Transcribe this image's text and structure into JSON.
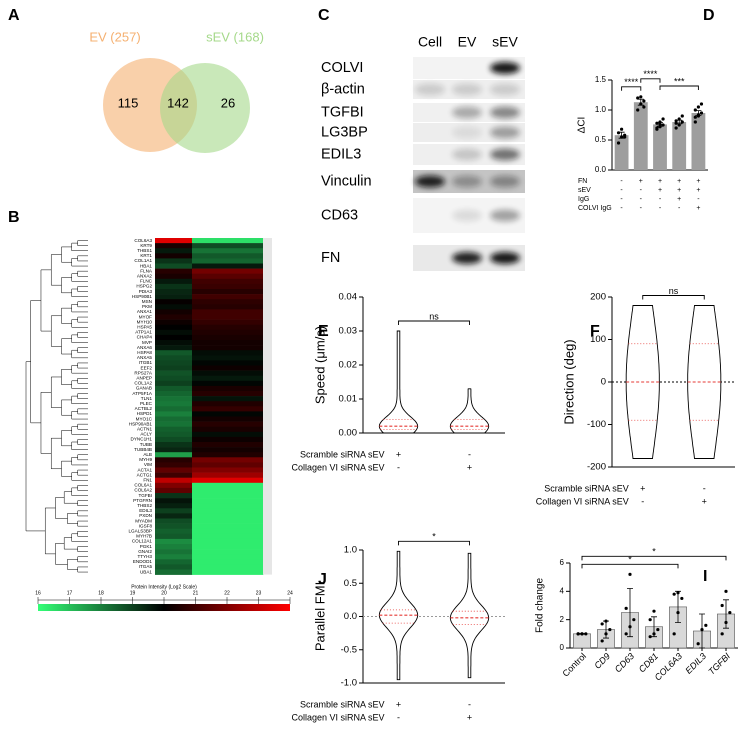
{
  "chart_data": [
    {
      "letter": "A",
      "type": "venn",
      "sets": [
        {
          "label": "EV (257)",
          "color": "#f5b071"
        },
        {
          "label": "sEV (168)",
          "color": "#a5d98a"
        }
      ],
      "only_a": 115,
      "both": 142,
      "only_b": 26
    },
    {
      "letter": "B",
      "type": "heatmap",
      "rows": [
        "COL6A3",
        "KRT9",
        "THBS1",
        "KRT1",
        "COL1A1",
        "HBA1",
        "FLNA",
        "ANXA2",
        "FLNC",
        "HSPG2",
        "PDIA3",
        "HSP90B1",
        "MSN",
        "PKM",
        "ANXA1",
        "MYOF",
        "MYH10",
        "HSPA5",
        "ATP1A1",
        "CHAP4",
        "MVP",
        "ANXA6",
        "HSPA8",
        "ANXA5",
        "ITGB1",
        "EEF2",
        "RPS27A",
        "ANPEP",
        "COL1A2",
        "GANAB",
        "ATP5F1A",
        "TLN1",
        "PLEC",
        "ACTBL2",
        "HSPD1",
        "MYO1C",
        "HSP90AB1",
        "ACTN1",
        "ACLY",
        "DYNC1H1",
        "TUBB",
        "TUBB4B",
        "ALB",
        "MYH9",
        "VIM",
        "ACTA1",
        "ACTG1",
        "FN1",
        "COL6A1",
        "COL6A2",
        "TGFBI",
        "PTGFRN",
        "THBS2",
        "EDIL3",
        "PXDN",
        "MYADM",
        "IGSF8",
        "LGALS3BP",
        "MYH7B",
        "COL12A1",
        "PGK1",
        "GNAI2",
        "TTYH3",
        "ENDOD1",
        "ITGA5",
        "UBA1"
      ],
      "series": [
        {
          "values": [
            23.5,
            20.4,
            19.6,
            20.3,
            19.2,
            18.8,
            20.6,
            20.4,
            19.6,
            19.2,
            19.4,
            19.5,
            20.1,
            19.8,
            20.3,
            20.5,
            20.2,
            20.0,
            19.8,
            20.0,
            19.8,
            19.6,
            18.6,
            18.8,
            18.9,
            19.0,
            18.7,
            18.8,
            19.0,
            18.6,
            18.4,
            18.2,
            18.1,
            18.3,
            18.0,
            18.3,
            18.2,
            18.5,
            18.6,
            18.8,
            19.2,
            19.4,
            17.5,
            20.6,
            20.8,
            21.5,
            21.0,
            23.0,
            22.0,
            21.5,
            19.2,
            19.7,
            19.5,
            19.0,
            19.4,
            18.8,
            18.7,
            18.5,
            18.6,
            17.8,
            18.0,
            18.2,
            18.0,
            18.4,
            18.6,
            18.3
          ]
        },
        {
          "values": [
            16.5,
            18.8,
            18.2,
            18.6,
            18.4,
            19.6,
            21.8,
            21.4,
            21.0,
            20.9,
            20.6,
            21.0,
            20.7,
            20.6,
            21.0,
            21.0,
            20.8,
            20.6,
            20.5,
            20.4,
            20.3,
            20.3,
            19.8,
            19.7,
            19.9,
            20.2,
            19.8,
            19.6,
            19.9,
            20.4,
            20.6,
            19.7,
            20.5,
            20.8,
            19.9,
            20.3,
            20.6,
            20.4,
            19.8,
            20.2,
            20.5,
            20.3,
            20.5,
            21.8,
            21.5,
            22.0,
            22.5,
            23.5,
            16.3,
            16.3,
            16.3,
            16.3,
            16.3,
            16.3,
            16.3,
            16.3,
            16.3,
            16.3,
            16.3,
            16.3,
            16.3,
            16.3,
            16.3,
            16.3,
            16.3,
            16.3
          ]
        }
      ],
      "colorbar": {
        "title": "Protein Intensity (Log2 Scale)",
        "lim": [
          16,
          24
        ],
        "ticks": [
          16,
          17,
          18,
          19,
          20,
          21,
          22,
          23,
          24
        ],
        "colors": [
          "#33ff77",
          "#000000",
          "#ff0000"
        ]
      }
    },
    {
      "letter": "D",
      "type": "bar",
      "ylabel": "ΔCI",
      "color": "#9e9e9e",
      "ylim": [
        0,
        1.5
      ],
      "yticks": [
        {
          "value": 0,
          "label": "0.0"
        },
        0.5,
        {
          "value": 1,
          "label": "1.0"
        },
        1.5
      ],
      "values": [
        0.58,
        1.13,
        0.76,
        0.8,
        0.95
      ],
      "errors": [
        0.05,
        0.05,
        0.03,
        0.03,
        0.04
      ],
      "points": [
        [
          0.45,
          0.55,
          0.58,
          0.62,
          0.68,
          0.55
        ],
        [
          1.0,
          1.1,
          1.15,
          1.2,
          1.22,
          1.05
        ],
        [
          0.68,
          0.72,
          0.75,
          0.78,
          0.8,
          0.85,
          0.7,
          0.76
        ],
        [
          0.7,
          0.75,
          0.8,
          0.82,
          0.85,
          0.9,
          0.78
        ],
        [
          0.8,
          0.9,
          0.95,
          1.0,
          1.05,
          1.1,
          0.88,
          0.92
        ]
      ],
      "conditions": [
        {
          "name": "FN",
          "signs": [
            "-",
            "+",
            "+",
            "+",
            "+"
          ]
        },
        {
          "name": "sEV",
          "signs": [
            "-",
            "-",
            "+",
            "+",
            "+"
          ]
        },
        {
          "name": "IgG",
          "signs": [
            "-",
            "-",
            "-",
            "+",
            "-"
          ]
        },
        {
          "name": "COLVI IgG",
          "signs": [
            "-",
            "-",
            "-",
            "-",
            "+"
          ]
        }
      ],
      "significance": [
        {
          "label": "****",
          "from": 0,
          "to": 1
        },
        {
          "label": "****",
          "from": 1,
          "to": 2
        },
        {
          "label": "***",
          "from": 2,
          "to": 4
        }
      ]
    },
    {
      "letter": "E",
      "type": "violin",
      "ylabel": "Speed (μm/s)",
      "ylim": [
        0,
        0.04
      ],
      "yticks": [
        {
          "value": 0,
          "label": "0.00"
        },
        0.01,
        0.02,
        0.03,
        0.04
      ],
      "series": [
        {
          "min": 0,
          "max": 0.03,
          "median": 0.002,
          "q1": 0.001,
          "q3": 0.004
        },
        {
          "min": 0,
          "max": 0.013,
          "median": 0.002,
          "q1": 0.001,
          "q3": 0.004
        }
      ],
      "conditions": [
        {
          "name": "Scramble siRNA sEV",
          "signs": [
            "+",
            "-"
          ]
        },
        {
          "name": "Collagen VI siRNA sEV",
          "signs": [
            "-",
            "+"
          ]
        }
      ],
      "significance": [
        {
          "label": "ns",
          "from": 0,
          "to": 1
        }
      ]
    },
    {
      "letter": "F",
      "type": "violin",
      "ylabel": "Direction (deg)",
      "ylim": [
        -200,
        200
      ],
      "yticks": [
        -200,
        -100,
        0,
        100,
        200
      ],
      "hline": 0,
      "series": [
        {
          "min": -180,
          "max": 180,
          "median": 0,
          "q1": -90,
          "q3": 90
        },
        {
          "min": -180,
          "max": 180,
          "median": 0,
          "q1": -90,
          "q3": 90
        }
      ],
      "conditions": [
        {
          "name": "Scramble siRNA sEV",
          "signs": [
            "+",
            "-"
          ]
        },
        {
          "name": "Collagen VI siRNA sEV",
          "signs": [
            "-",
            "+"
          ]
        }
      ],
      "significance": [
        {
          "label": "ns",
          "from": 0,
          "to": 1
        }
      ]
    },
    {
      "letter": "J",
      "type": "violin",
      "ylabel": "Parallel FMI",
      "ylim": [
        -1,
        1
      ],
      "yticks": [
        {
          "value": -1,
          "label": "-1.0"
        },
        -0.5,
        {
          "value": 0,
          "label": "0.0"
        },
        0.5,
        {
          "value": 1,
          "label": "1.0"
        }
      ],
      "hline": 0,
      "series": [
        {
          "min": -0.95,
          "max": 0.98,
          "median": 0.02,
          "q1": -0.1,
          "q3": 0.1
        },
        {
          "min": -0.92,
          "max": 0.95,
          "median": -0.02,
          "q1": -0.12,
          "q3": 0.08
        }
      ],
      "conditions": [
        {
          "name": "Scramble siRNA sEV",
          "signs": [
            "+",
            "-"
          ]
        },
        {
          "name": "Collagen VI siRNA sEV",
          "signs": [
            "-",
            "+"
          ]
        }
      ],
      "significance": [
        {
          "label": "*",
          "from": 0,
          "to": 1
        }
      ]
    },
    {
      "letter": "I",
      "type": "bar",
      "ylabel": "Fold change",
      "color": "#d9d9d9",
      "ylim": [
        0,
        6
      ],
      "yticks": [
        0,
        2,
        4,
        6
      ],
      "categories": [
        "Control",
        "CD9",
        "CD63",
        "CD81",
        "COL6A3",
        "EDIL3",
        "TGFBI"
      ],
      "values": [
        1.0,
        1.3,
        2.5,
        1.5,
        2.9,
        1.2,
        2.4
      ],
      "errors": [
        0.02,
        0.6,
        1.7,
        0.7,
        1.1,
        1.2,
        1.0
      ],
      "points": [
        [
          1,
          1,
          1,
          1,
          1
        ],
        [
          0.5,
          1.0,
          1.3,
          1.7,
          1.9
        ],
        [
          1.0,
          1.5,
          2.0,
          2.8,
          5.2
        ],
        [
          0.8,
          1.0,
          1.3,
          2.0,
          2.6
        ],
        [
          1.0,
          2.5,
          3.5,
          3.8,
          3.9
        ],
        [
          0.3,
          1.3,
          1.6
        ],
        [
          1.0,
          1.8,
          2.5,
          3.0,
          4.0
        ]
      ],
      "significance": [
        {
          "label": "*",
          "from": 0,
          "to": 4
        },
        {
          "label": "*",
          "from": 0,
          "to": 6
        }
      ]
    }
  ],
  "blot": {
    "letter": "C",
    "lanes": [
      "Cell",
      "EV",
      "sEV"
    ],
    "proteins": [
      "COLVI",
      "β-actin",
      "TGFBI",
      "LG3BP",
      "EDIL3",
      "Vinculin",
      "CD63",
      "FN"
    ]
  }
}
